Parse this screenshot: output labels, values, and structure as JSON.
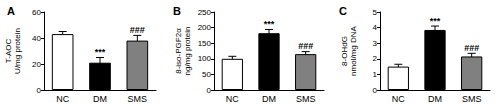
{
  "chart_data": [
    {
      "type": "bar",
      "title": "A",
      "ylabel": "T-AOC\nU/mg protein",
      "categories": [
        "NC",
        "DM",
        "SMS"
      ],
      "values": [
        43,
        21,
        38
      ],
      "errors": [
        2,
        4,
        4
      ],
      "annotations": [
        null,
        "***",
        "###"
      ],
      "colors": [
        "#ffffff",
        "#000000",
        "#808080"
      ],
      "ylim": [
        0,
        60
      ],
      "yticks": [
        0,
        20,
        40,
        60
      ],
      "grid": false
    },
    {
      "type": "bar",
      "title": "B",
      "ylabel": "8-iso-PGF2α\nng/mg protein",
      "categories": [
        "NC",
        "DM",
        "SMS"
      ],
      "values": [
        100,
        182,
        115
      ],
      "errors": [
        8,
        12,
        8
      ],
      "annotations": [
        null,
        "***",
        "###"
      ],
      "colors": [
        "#ffffff",
        "#000000",
        "#808080"
      ],
      "ylim": [
        0,
        250
      ],
      "yticks": [
        0,
        50,
        100,
        150,
        200,
        250
      ],
      "grid": false
    },
    {
      "type": "bar",
      "title": "C",
      "ylabel": "8-OHdG\nnmol/mg DNA",
      "categories": [
        "NC",
        "DM",
        "SMS"
      ],
      "values": [
        1.5,
        3.85,
        2.15
      ],
      "errors": [
        0.15,
        0.25,
        0.2
      ],
      "annotations": [
        null,
        "***",
        "###"
      ],
      "colors": [
        "#ffffff",
        "#000000",
        "#808080"
      ],
      "ylim": [
        0,
        5
      ],
      "yticks": [
        0,
        1,
        2,
        3,
        4,
        5
      ],
      "grid": false
    }
  ]
}
